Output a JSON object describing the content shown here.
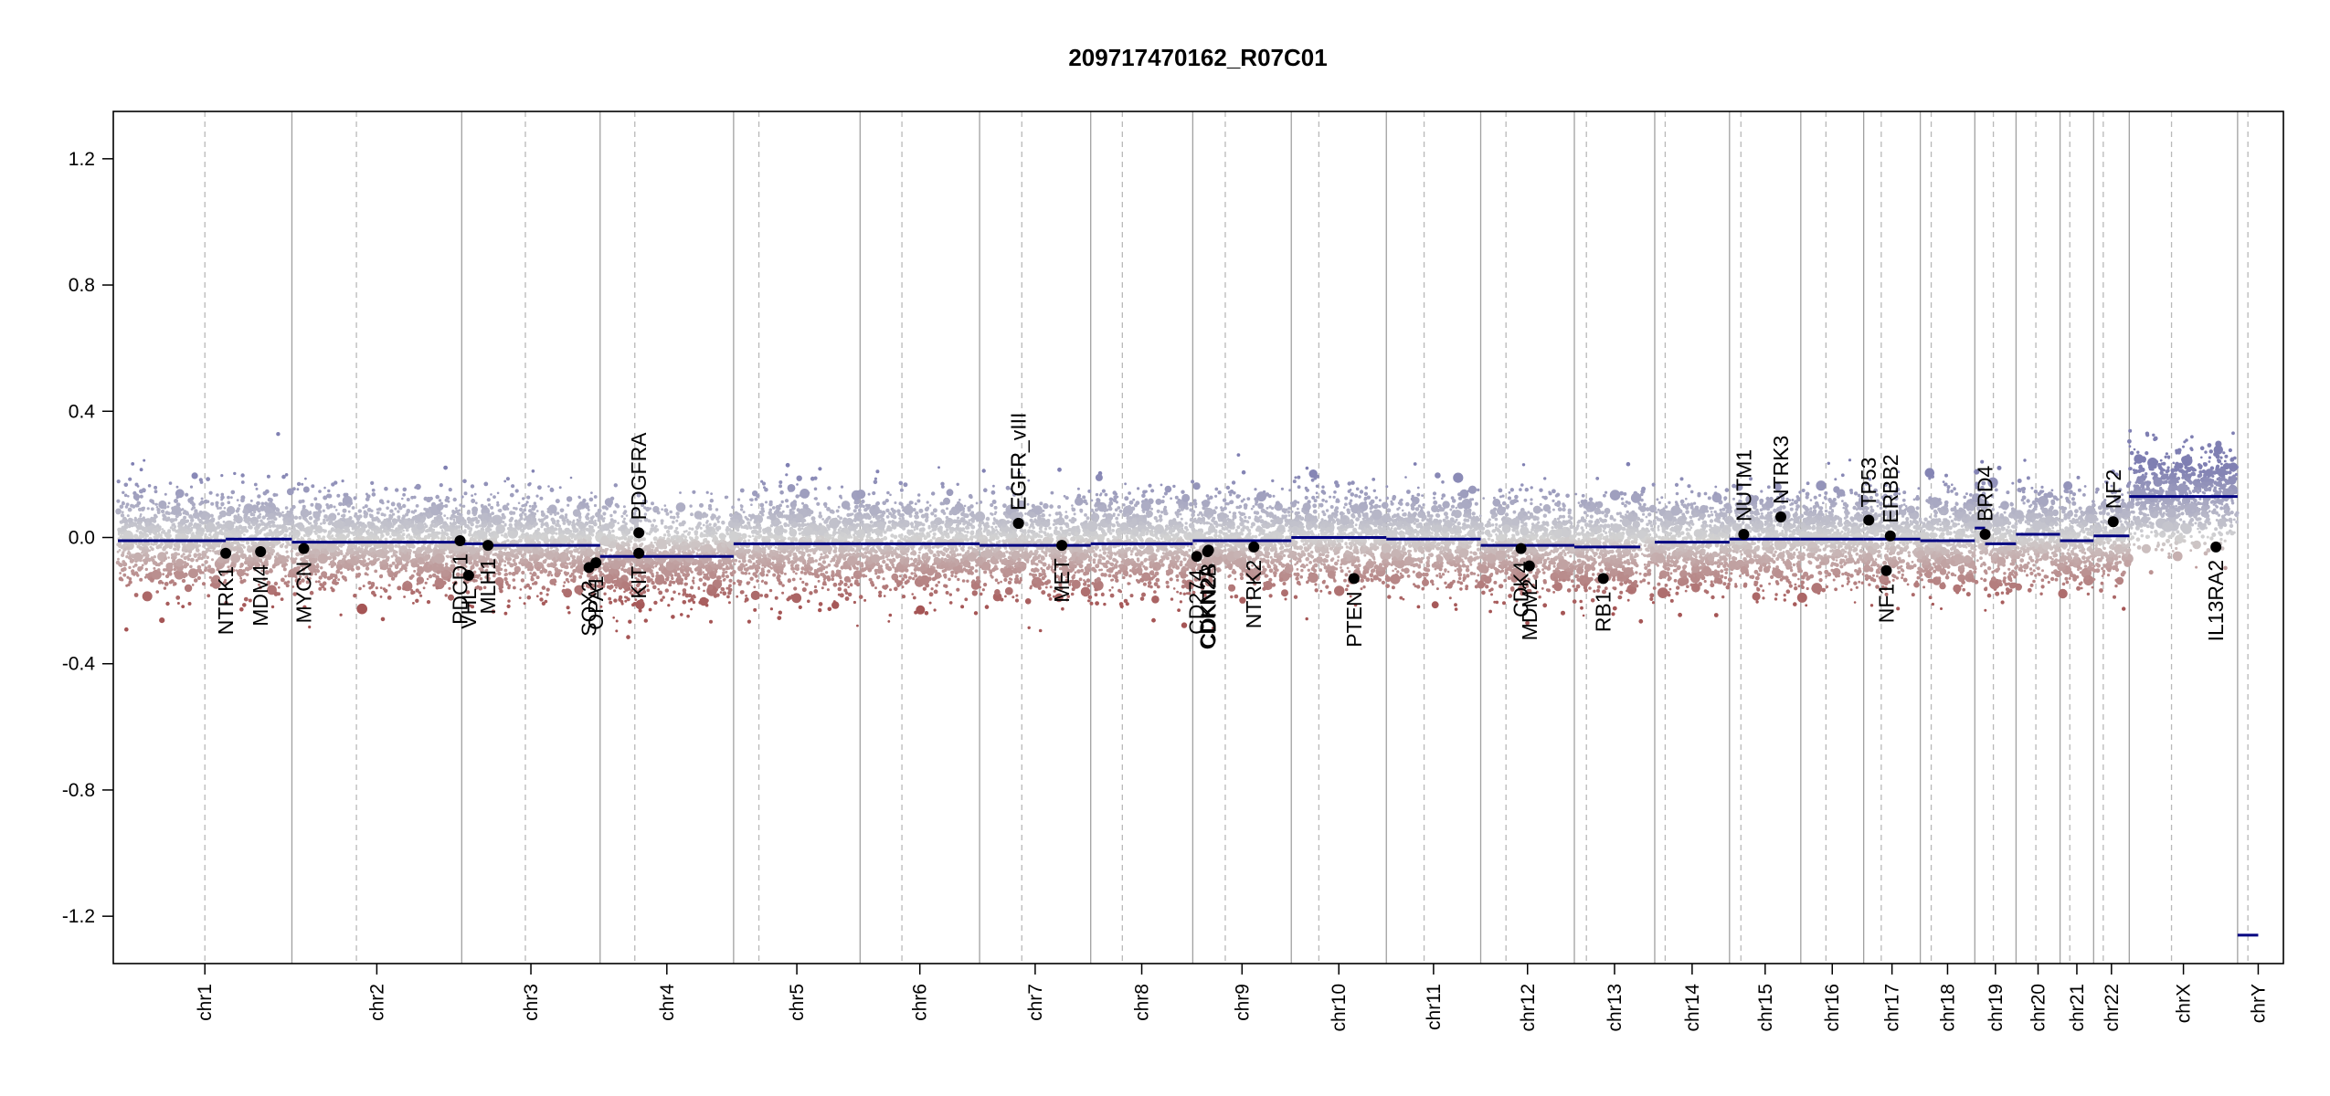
{
  "chart_data": {
    "type": "scatter",
    "subtype": "copy-number profile",
    "title": "209717470162_R07C01",
    "xlabel": "",
    "ylabel": "",
    "ylim": [
      -1.35,
      1.35
    ],
    "y_ticks": [
      -1.2,
      -0.8,
      -0.4,
      0.0,
      0.4,
      0.8,
      1.2
    ],
    "y_tick_labels": [
      "-1.2",
      "-0.8",
      "-0.4",
      "0.0",
      "0.4",
      "0.8",
      "1.2"
    ],
    "grid": false,
    "legend": "none",
    "chromosomes": [
      {
        "name": "chr1",
        "len": 249
      },
      {
        "name": "chr2",
        "len": 243
      },
      {
        "name": "chr3",
        "len": 198
      },
      {
        "name": "chr4",
        "len": 191
      },
      {
        "name": "chr5",
        "len": 181
      },
      {
        "name": "chr6",
        "len": 171
      },
      {
        "name": "chr7",
        "len": 159
      },
      {
        "name": "chr8",
        "len": 146
      },
      {
        "name": "chr9",
        "len": 141
      },
      {
        "name": "chr10",
        "len": 136
      },
      {
        "name": "chr11",
        "len": 135
      },
      {
        "name": "chr12",
        "len": 134
      },
      {
        "name": "chr13",
        "len": 115
      },
      {
        "name": "chr14",
        "len": 107
      },
      {
        "name": "chr15",
        "len": 102
      },
      {
        "name": "chr16",
        "len": 90
      },
      {
        "name": "chr17",
        "len": 81
      },
      {
        "name": "chr18",
        "len": 78
      },
      {
        "name": "chr19",
        "len": 59
      },
      {
        "name": "chr20",
        "len": 63
      },
      {
        "name": "chr21",
        "len": 48
      },
      {
        "name": "chr22",
        "len": 51
      },
      {
        "name": "chrX",
        "len": 155
      },
      {
        "name": "chrY",
        "len": 59
      }
    ],
    "centromere_fraction": [
      0.5,
      0.38,
      0.46,
      0.26,
      0.2,
      0.35,
      0.38,
      0.31,
      0.33,
      0.29,
      0.4,
      0.27,
      0.15,
      0.14,
      0.16,
      0.4,
      0.31,
      0.2,
      0.45,
      0.45,
      0.29,
      0.27,
      0.39,
      0.25
    ],
    "segments": [
      {
        "chr": "chr1",
        "from": 0,
        "to": 0.62,
        "y": -0.01
      },
      {
        "chr": "chr1",
        "from": 0.62,
        "to": 1,
        "y": -0.005
      },
      {
        "chr": "chr2",
        "from": 0,
        "to": 1,
        "y": -0.015
      },
      {
        "chr": "chr3",
        "from": 0,
        "to": 0.2,
        "y": -0.02
      },
      {
        "chr": "chr3",
        "from": 0.2,
        "to": 1,
        "y": -0.025
      },
      {
        "chr": "chr4",
        "from": 0,
        "to": 1,
        "y": -0.06
      },
      {
        "chr": "chr5",
        "from": 0,
        "to": 1,
        "y": -0.02
      },
      {
        "chr": "chr6",
        "from": 0,
        "to": 1,
        "y": -0.02
      },
      {
        "chr": "chr7",
        "from": 0,
        "to": 1,
        "y": -0.025
      },
      {
        "chr": "chr8",
        "from": 0,
        "to": 1,
        "y": -0.02
      },
      {
        "chr": "chr9",
        "from": 0,
        "to": 1,
        "y": -0.01
      },
      {
        "chr": "chr10",
        "from": 0,
        "to": 1,
        "y": 0.0
      },
      {
        "chr": "chr11",
        "from": 0,
        "to": 1,
        "y": -0.005
      },
      {
        "chr": "chr12",
        "from": 0,
        "to": 1,
        "y": -0.025
      },
      {
        "chr": "chr13",
        "from": 0,
        "to": 0.82,
        "y": -0.03
      },
      {
        "chr": "chr14",
        "from": 0,
        "to": 1,
        "y": -0.015
      },
      {
        "chr": "chr15",
        "from": 0,
        "to": 1,
        "y": -0.005
      },
      {
        "chr": "chr16",
        "from": 0,
        "to": 1,
        "y": -0.005
      },
      {
        "chr": "chr17",
        "from": 0,
        "to": 1,
        "y": -0.005
      },
      {
        "chr": "chr18",
        "from": 0,
        "to": 1,
        "y": -0.01
      },
      {
        "chr": "chr19",
        "from": 0,
        "to": 0.25,
        "y": 0.03
      },
      {
        "chr": "chr19",
        "from": 0.25,
        "to": 1,
        "y": -0.02
      },
      {
        "chr": "chr20",
        "from": 0,
        "to": 1,
        "y": 0.01
      },
      {
        "chr": "chr21",
        "from": 0,
        "to": 1,
        "y": -0.01
      },
      {
        "chr": "chr22",
        "from": 0,
        "to": 1,
        "y": 0.005
      },
      {
        "chr": "chrX",
        "from": 0,
        "to": 1,
        "y": 0.13
      },
      {
        "chr": "chrY",
        "from": 0,
        "to": 0.5,
        "y": -1.26
      }
    ],
    "genes": [
      {
        "name": "NTRK1",
        "chr": "chr1",
        "pos": 0.62,
        "y": -0.05
      },
      {
        "name": "MDM4",
        "chr": "chr1",
        "pos": 0.82,
        "y": -0.045
      },
      {
        "name": "MYCN",
        "chr": "chr2",
        "pos": 0.07,
        "y": -0.035
      },
      {
        "name": "PDCD1",
        "chr": "chr2",
        "pos": 0.99,
        "y": -0.01
      },
      {
        "name": "VHL",
        "chr": "chr3",
        "pos": 0.05,
        "y": -0.12
      },
      {
        "name": "MLH1",
        "chr": "chr3",
        "pos": 0.19,
        "y": -0.025
      },
      {
        "name": "SOX2",
        "chr": "chr3",
        "pos": 0.92,
        "y": -0.095
      },
      {
        "name": "OPA1",
        "chr": "chr3",
        "pos": 0.97,
        "y": -0.08
      },
      {
        "name": "KIT",
        "chr": "chr4",
        "pos": 0.29,
        "y": -0.05
      },
      {
        "name": "PDGFRA",
        "chr": "chr4",
        "pos": 0.29,
        "y": 0.015
      },
      {
        "name": "EGFR_vIII",
        "chr": "chr7",
        "pos": 0.35,
        "y": 0.045
      },
      {
        "name": "EGFR",
        "chr": "chr7",
        "pos": 0.35,
        "y": 0.045
      },
      {
        "name": "MET",
        "chr": "chr7",
        "pos": 0.74,
        "y": -0.025
      },
      {
        "name": "CD274",
        "chr": "chr9",
        "pos": 0.04,
        "y": -0.06
      },
      {
        "name": "CDKN2A",
        "chr": "chr9",
        "pos": 0.15,
        "y": -0.045
      },
      {
        "name": "CDKN2B",
        "chr": "chr9",
        "pos": 0.16,
        "y": -0.04
      },
      {
        "name": "NTRK2",
        "chr": "chr9",
        "pos": 0.62,
        "y": -0.03
      },
      {
        "name": "PTEN",
        "chr": "chr10",
        "pos": 0.66,
        "y": -0.13
      },
      {
        "name": "CDK4",
        "chr": "chr12",
        "pos": 0.43,
        "y": -0.035
      },
      {
        "name": "MDM2",
        "chr": "chr12",
        "pos": 0.52,
        "y": -0.09
      },
      {
        "name": "RB1",
        "chr": "chr13",
        "pos": 0.36,
        "y": -0.13
      },
      {
        "name": "NUTM1",
        "chr": "chr15",
        "pos": 0.2,
        "y": 0.01
      },
      {
        "name": "NTRK3",
        "chr": "chr15",
        "pos": 0.72,
        "y": 0.065
      },
      {
        "name": "TP53",
        "chr": "chr17",
        "pos": 0.09,
        "y": 0.055
      },
      {
        "name": "ERBB2",
        "chr": "chr17",
        "pos": 0.47,
        "y": 0.005
      },
      {
        "name": "NF1",
        "chr": "chr17",
        "pos": 0.4,
        "y": -0.105
      },
      {
        "name": "BRD4",
        "chr": "chr19",
        "pos": 0.25,
        "y": 0.01
      },
      {
        "name": "NF2",
        "chr": "chr22",
        "pos": 0.55,
        "y": 0.05
      },
      {
        "name": "IL13RA2",
        "chr": "chrX",
        "pos": 0.8,
        "y": -0.03
      }
    ]
  },
  "colors": {
    "gain": "#7f7fb2",
    "loss": "#a55555",
    "neutral": "#d2d2d2",
    "segment": "#000080",
    "gene_point": "#000000",
    "boundary_line": "#a0a0a0",
    "centromere_line": "#b9b9b9",
    "axis": "#000000"
  }
}
